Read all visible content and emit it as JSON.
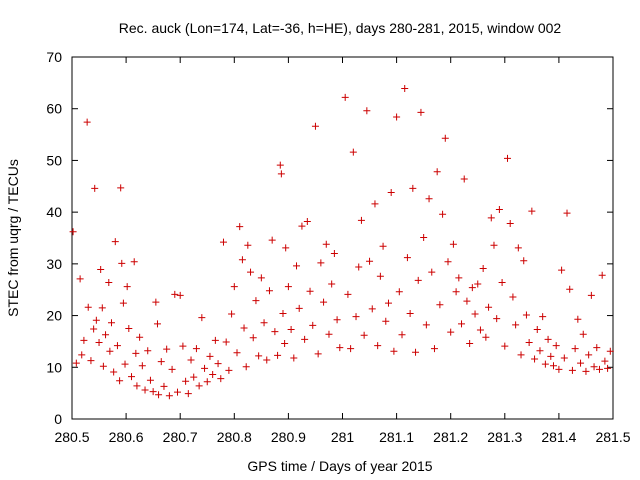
{
  "chart_data": {
    "type": "scatter",
    "title": "Rec. auck (Lon=174, Lat=-36, h=HE), days 280-281, 2015, window 002",
    "xlabel": "GPS time / Days of year 2015",
    "ylabel": "STEC from uqrg / TECUs",
    "xlim": [
      280.5,
      281.5
    ],
    "ylim": [
      0,
      70
    ],
    "xticks": [
      280.5,
      280.6,
      280.7,
      280.8,
      280.9,
      281.0,
      281.1,
      281.2,
      281.3,
      281.4,
      281.5
    ],
    "xtick_labels": [
      "280.5",
      "280.6",
      "280.7",
      "280.8",
      "280.9",
      "281",
      "281.1",
      "281.2",
      "281.3",
      "281.4",
      "281.5"
    ],
    "yticks": [
      0,
      10,
      20,
      30,
      40,
      50,
      60,
      70
    ],
    "ytick_labels": [
      "0",
      "10",
      "20",
      "30",
      "40",
      "50",
      "60",
      "70"
    ],
    "marker": "+",
    "color": "#cc0000",
    "grid": false,
    "series": [
      {
        "name": "STEC",
        "points": [
          [
            280.502,
            36.2
          ],
          [
            280.508,
            10.8
          ],
          [
            280.515,
            27.1
          ],
          [
            280.518,
            12.4
          ],
          [
            280.522,
            15.2
          ],
          [
            280.528,
            57.4
          ],
          [
            280.53,
            21.6
          ],
          [
            280.535,
            11.3
          ],
          [
            280.54,
            17.4
          ],
          [
            280.542,
            44.6
          ],
          [
            280.545,
            19.1
          ],
          [
            280.55,
            14.8
          ],
          [
            280.553,
            28.9
          ],
          [
            280.556,
            21.5
          ],
          [
            280.558,
            10.2
          ],
          [
            280.562,
            16.3
          ],
          [
            280.568,
            26.4
          ],
          [
            280.57,
            13.1
          ],
          [
            280.573,
            18.6
          ],
          [
            280.577,
            9.1
          ],
          [
            280.58,
            34.3
          ],
          [
            280.584,
            14.2
          ],
          [
            280.588,
            7.4
          ],
          [
            280.59,
            44.7
          ],
          [
            280.592,
            30.1
          ],
          [
            280.595,
            22.4
          ],
          [
            280.598,
            10.6
          ],
          [
            280.602,
            25.6
          ],
          [
            280.605,
            17.5
          ],
          [
            280.61,
            8.2
          ],
          [
            280.615,
            30.4
          ],
          [
            280.618,
            12.7
          ],
          [
            280.62,
            6.4
          ],
          [
            280.625,
            15.8
          ],
          [
            280.63,
            10.3
          ],
          [
            280.635,
            5.6
          ],
          [
            280.64,
            13.2
          ],
          [
            280.645,
            7.5
          ],
          [
            280.65,
            5.3
          ],
          [
            280.655,
            22.6
          ],
          [
            280.658,
            18.4
          ],
          [
            280.66,
            4.7
          ],
          [
            280.665,
            11.1
          ],
          [
            280.67,
            6.3
          ],
          [
            280.675,
            13.5
          ],
          [
            280.68,
            4.5
          ],
          [
            280.685,
            9.6
          ],
          [
            280.69,
            24.1
          ],
          [
            280.695,
            5.2
          ],
          [
            280.7,
            23.9
          ],
          [
            280.705,
            14.1
          ],
          [
            280.71,
            7.3
          ],
          [
            280.715,
            4.9
          ],
          [
            280.72,
            11.4
          ],
          [
            280.725,
            8.1
          ],
          [
            280.73,
            13.6
          ],
          [
            280.735,
            6.4
          ],
          [
            280.74,
            19.6
          ],
          [
            280.745,
            9.8
          ],
          [
            280.75,
            7.2
          ],
          [
            280.755,
            12.1
          ],
          [
            280.76,
            8.6
          ],
          [
            280.765,
            15.2
          ],
          [
            280.77,
            10.7
          ],
          [
            280.775,
            7.8
          ],
          [
            280.78,
            34.2
          ],
          [
            280.785,
            14.9
          ],
          [
            280.79,
            9.4
          ],
          [
            280.795,
            20.3
          ],
          [
            280.8,
            25.6
          ],
          [
            280.805,
            12.8
          ],
          [
            280.81,
            37.2
          ],
          [
            280.815,
            30.8
          ],
          [
            280.818,
            17.6
          ],
          [
            280.822,
            10.1
          ],
          [
            280.825,
            33.6
          ],
          [
            280.83,
            28.4
          ],
          [
            280.835,
            15.7
          ],
          [
            280.84,
            22.9
          ],
          [
            280.845,
            12.2
          ],
          [
            280.85,
            27.3
          ],
          [
            280.855,
            18.6
          ],
          [
            280.86,
            11.4
          ],
          [
            280.865,
            24.8
          ],
          [
            280.87,
            34.6
          ],
          [
            280.875,
            16.9
          ],
          [
            280.88,
            12.3
          ],
          [
            280.885,
            49.1
          ],
          [
            280.887,
            47.4
          ],
          [
            280.89,
            20.4
          ],
          [
            280.893,
            14.6
          ],
          [
            280.895,
            33.1
          ],
          [
            280.9,
            25.6
          ],
          [
            280.905,
            17.3
          ],
          [
            280.91,
            11.8
          ],
          [
            280.915,
            29.6
          ],
          [
            280.92,
            21.4
          ],
          [
            280.925,
            37.3
          ],
          [
            280.93,
            15.4
          ],
          [
            280.935,
            38.2
          ],
          [
            280.94,
            24.7
          ],
          [
            280.945,
            18.1
          ],
          [
            280.95,
            56.6
          ],
          [
            280.955,
            12.6
          ],
          [
            280.96,
            30.2
          ],
          [
            280.965,
            22.6
          ],
          [
            280.97,
            33.8
          ],
          [
            280.975,
            16.4
          ],
          [
            280.98,
            26.1
          ],
          [
            280.985,
            32.0
          ],
          [
            280.99,
            19.2
          ],
          [
            280.995,
            13.8
          ],
          [
            281.005,
            62.2
          ],
          [
            281.01,
            24.1
          ],
          [
            281.015,
            13.6
          ],
          [
            281.02,
            51.6
          ],
          [
            281.025,
            19.8
          ],
          [
            281.03,
            29.4
          ],
          [
            281.035,
            38.4
          ],
          [
            281.04,
            16.2
          ],
          [
            281.045,
            59.6
          ],
          [
            281.05,
            30.5
          ],
          [
            281.055,
            21.3
          ],
          [
            281.06,
            41.6
          ],
          [
            281.065,
            14.2
          ],
          [
            281.07,
            27.6
          ],
          [
            281.075,
            33.4
          ],
          [
            281.08,
            18.9
          ],
          [
            281.085,
            22.4
          ],
          [
            281.09,
            43.8
          ],
          [
            281.095,
            13.1
          ],
          [
            281.1,
            58.4
          ],
          [
            281.105,
            24.6
          ],
          [
            281.11,
            16.3
          ],
          [
            281.115,
            63.9
          ],
          [
            281.12,
            31.2
          ],
          [
            281.125,
            20.4
          ],
          [
            281.13,
            44.6
          ],
          [
            281.135,
            12.9
          ],
          [
            281.14,
            26.8
          ],
          [
            281.145,
            59.3
          ],
          [
            281.15,
            35.1
          ],
          [
            281.155,
            18.2
          ],
          [
            281.16,
            42.6
          ],
          [
            281.165,
            28.4
          ],
          [
            281.17,
            13.6
          ],
          [
            281.175,
            47.8
          ],
          [
            281.18,
            22.1
          ],
          [
            281.185,
            39.6
          ],
          [
            281.19,
            54.3
          ],
          [
            281.195,
            30.4
          ],
          [
            281.2,
            16.8
          ],
          [
            281.205,
            33.8
          ],
          [
            281.21,
            24.6
          ],
          [
            281.215,
            27.3
          ],
          [
            281.22,
            18.4
          ],
          [
            281.225,
            46.4
          ],
          [
            281.23,
            22.8
          ],
          [
            281.235,
            14.6
          ],
          [
            281.24,
            25.4
          ],
          [
            281.245,
            20.3
          ],
          [
            281.25,
            26.1
          ],
          [
            281.255,
            17.2
          ],
          [
            281.26,
            29.1
          ],
          [
            281.265,
            15.8
          ],
          [
            281.27,
            21.6
          ],
          [
            281.275,
            38.9
          ],
          [
            281.28,
            33.6
          ],
          [
            281.285,
            19.4
          ],
          [
            281.29,
            40.5
          ],
          [
            281.295,
            26.4
          ],
          [
            281.3,
            14.1
          ],
          [
            281.305,
            50.4
          ],
          [
            281.31,
            37.8
          ],
          [
            281.315,
            23.6
          ],
          [
            281.32,
            18.2
          ],
          [
            281.325,
            33.1
          ],
          [
            281.33,
            12.4
          ],
          [
            281.335,
            30.6
          ],
          [
            281.34,
            20.1
          ],
          [
            281.345,
            14.8
          ],
          [
            281.35,
            40.2
          ],
          [
            281.355,
            11.6
          ],
          [
            281.36,
            17.3
          ],
          [
            281.365,
            13.2
          ],
          [
            281.37,
            19.8
          ],
          [
            281.375,
            10.6
          ],
          [
            281.38,
            15.4
          ],
          [
            281.385,
            12.1
          ],
          [
            281.39,
            10.3
          ],
          [
            281.395,
            14.2
          ],
          [
            281.4,
            9.6
          ],
          [
            281.405,
            28.8
          ],
          [
            281.41,
            11.8
          ],
          [
            281.415,
            39.8
          ],
          [
            281.42,
            25.1
          ],
          [
            281.425,
            9.4
          ],
          [
            281.43,
            13.6
          ],
          [
            281.435,
            19.3
          ],
          [
            281.44,
            10.8
          ],
          [
            281.445,
            16.4
          ],
          [
            281.45,
            9.2
          ],
          [
            281.455,
            12.4
          ],
          [
            281.46,
            23.9
          ],
          [
            281.465,
            10.1
          ],
          [
            281.47,
            13.8
          ],
          [
            281.475,
            9.6
          ],
          [
            281.48,
            27.8
          ],
          [
            281.485,
            11.2
          ],
          [
            281.49,
            9.8
          ],
          [
            281.495,
            13.1
          ]
        ]
      }
    ]
  }
}
